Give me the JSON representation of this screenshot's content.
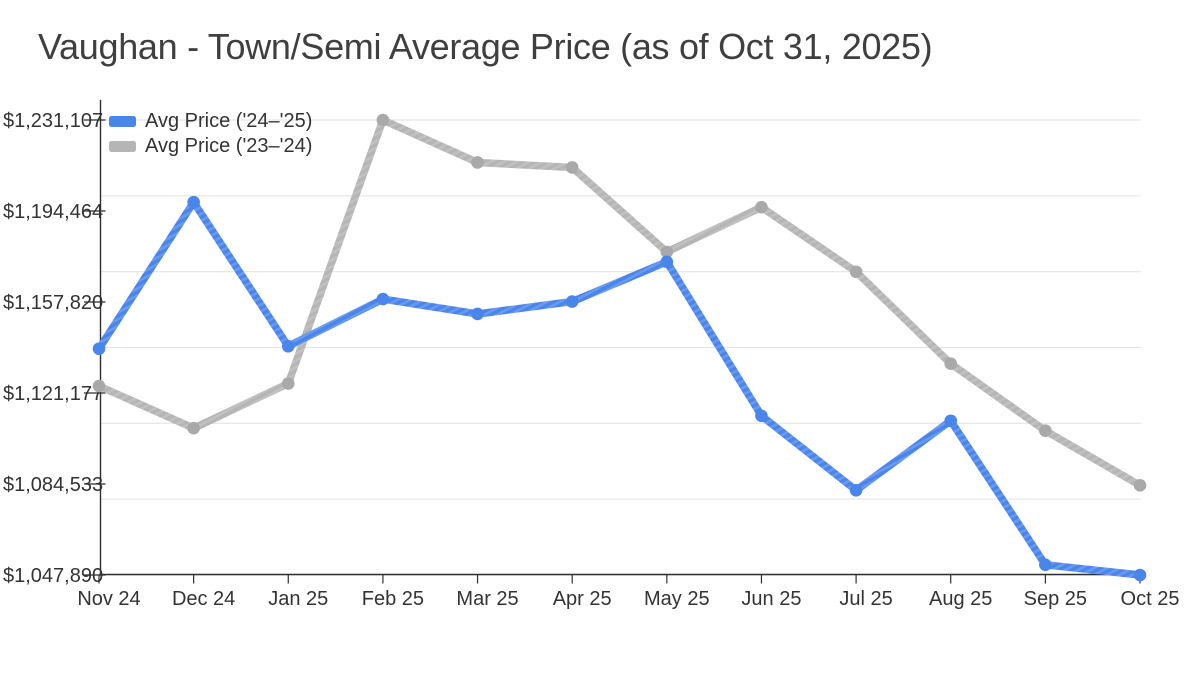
{
  "title": "Vaughan - Town/Semi Average Price (as of Oct 31, 2025)",
  "colors": {
    "background": "#ffffff",
    "title_text": "#3f3f3f",
    "tick_text": "#333333",
    "axis": "#2f2f2f",
    "gridline": "#e5e5e5",
    "series_blue": "#4a85ec",
    "series_gray": "#b5b5b5"
  },
  "chart_data": {
    "type": "line",
    "title": "Vaughan - Town/Semi Average Price (as of Oct 31, 2025)",
    "xlabel": "",
    "ylabel": "",
    "categories": [
      "Nov 24",
      "Dec 24",
      "Jan 25",
      "Feb 25",
      "Mar 25",
      "Apr 25",
      "May 25",
      "Jun 25",
      "Jul 25",
      "Aug 25",
      "Sep 25",
      "Oct 25"
    ],
    "series": [
      {
        "name": "Avg Price ('24–'25)",
        "color": "#4a85ec",
        "marker_color": "#4a85ec",
        "values": [
          1139000,
          1198000,
          1140000,
          1159000,
          1153000,
          1158000,
          1174000,
          1112000,
          1082000,
          1110000,
          1052000,
          1047890
        ]
      },
      {
        "name": "Avg Price ('23–'24)",
        "color": "#b5b5b5",
        "marker_color": "#a9a9a9",
        "values": [
          1124000,
          1107000,
          1125000,
          1231107,
          1214000,
          1212000,
          1178000,
          1196000,
          1170000,
          1133000,
          1106000,
          1084000
        ]
      }
    ],
    "y_tick_labels": [
      "$1,231,107",
      "$1,194,464",
      "$1,157,820",
      "$1,121,177",
      "$1,084,533",
      "$1,047,890"
    ],
    "ylim": [
      1047890,
      1231107
    ],
    "grid": true,
    "gridline_count": 7,
    "legend_position": "top-left"
  }
}
